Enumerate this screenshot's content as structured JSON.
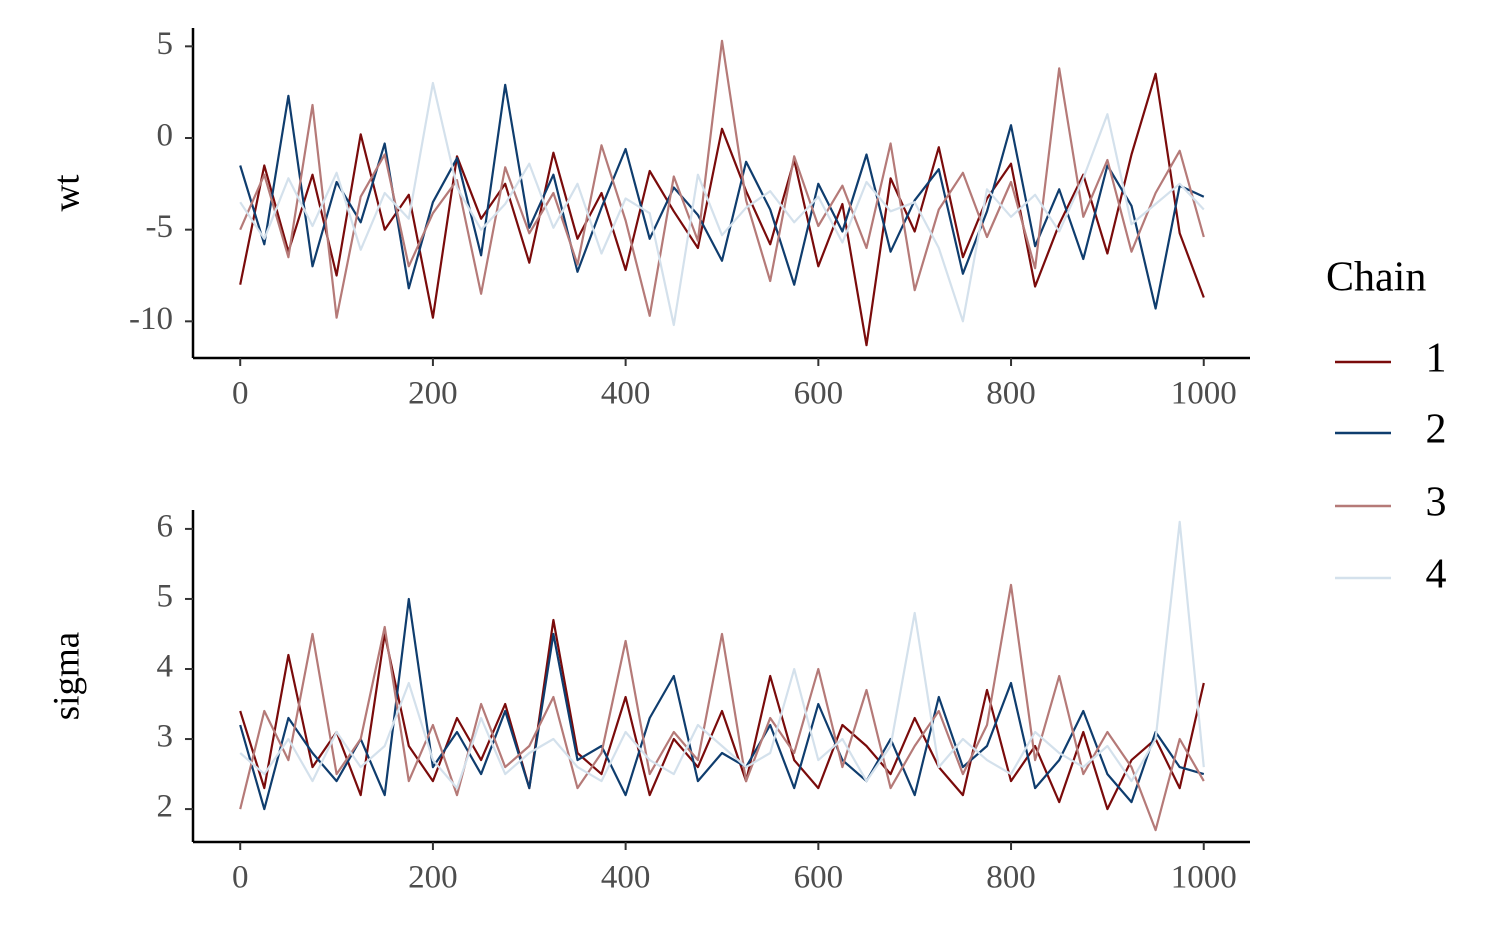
{
  "chart_data": [
    {
      "type": "line",
      "y_label": "wt",
      "legend_title": "Chain",
      "x": [
        0,
        25,
        50,
        75,
        100,
        125,
        150,
        175,
        200,
        225,
        250,
        275,
        300,
        325,
        350,
        375,
        400,
        425,
        450,
        475,
        500,
        525,
        550,
        575,
        600,
        625,
        650,
        675,
        700,
        725,
        750,
        775,
        800,
        825,
        850,
        875,
        900,
        925,
        950,
        975,
        1000
      ],
      "xlim": [
        -49,
        1048
      ],
      "ylim": [
        -12,
        6
      ],
      "xticks": [
        0,
        200,
        400,
        600,
        800,
        1000
      ],
      "yticks": [
        -10,
        -5,
        0,
        5
      ],
      "series": [
        {
          "name": "1",
          "color": "#7a0b0b",
          "values": [
            -8.0,
            -1.5,
            -6.2,
            -2.0,
            -7.5,
            0.2,
            -5.0,
            -3.1,
            -9.8,
            -1.0,
            -4.4,
            -2.5,
            -6.8,
            -0.8,
            -5.5,
            -3.0,
            -7.2,
            -1.8,
            -4.0,
            -6.0,
            0.5,
            -2.9,
            -5.8,
            -1.2,
            -7.0,
            -3.6,
            -11.3,
            -2.2,
            -5.1,
            -0.5,
            -6.5,
            -3.3,
            -1.4,
            -8.1,
            -4.7,
            -2.0,
            -6.3,
            -0.9,
            3.5,
            -5.2,
            -8.7
          ]
        },
        {
          "name": "2",
          "color": "#0f3d6e",
          "values": [
            -1.5,
            -5.8,
            2.3,
            -7.0,
            -2.4,
            -4.6,
            -0.3,
            -8.2,
            -3.5,
            -1.1,
            -6.4,
            2.9,
            -4.9,
            -2.0,
            -7.3,
            -3.8,
            -0.6,
            -5.5,
            -2.7,
            -4.2,
            -6.7,
            -1.3,
            -3.9,
            -8.0,
            -2.5,
            -5.1,
            -0.9,
            -6.2,
            -3.4,
            -1.7,
            -7.4,
            -4.0,
            0.7,
            -5.9,
            -2.8,
            -6.6,
            -1.5,
            -3.7,
            -9.3,
            -2.6,
            -3.2
          ]
        },
        {
          "name": "3",
          "color": "#b57a78",
          "values": [
            -5.0,
            -2.0,
            -6.5,
            1.8,
            -9.8,
            -3.2,
            -0.9,
            -7.0,
            -4.1,
            -2.3,
            -8.5,
            -1.6,
            -5.2,
            -3.0,
            -6.9,
            -0.4,
            -4.5,
            -9.7,
            -2.1,
            -5.6,
            5.3,
            -3.4,
            -7.8,
            -1.0,
            -4.8,
            -2.6,
            -6.0,
            -0.3,
            -8.3,
            -3.9,
            -1.9,
            -5.4,
            -2.4,
            -7.1,
            3.8,
            -4.3,
            -1.2,
            -6.2,
            -3.0,
            -0.7,
            -5.4
          ]
        },
        {
          "name": "4",
          "color": "#d4e1ec",
          "values": [
            -3.5,
            -5.5,
            -2.2,
            -4.8,
            -1.9,
            -6.1,
            -3.0,
            -4.4,
            3.0,
            -2.7,
            -5.0,
            -3.6,
            -1.4,
            -4.9,
            -2.5,
            -6.3,
            -3.3,
            -4.1,
            -10.2,
            -2.0,
            -5.3,
            -3.8,
            -2.9,
            -4.6,
            -3.2,
            -5.7,
            -2.4,
            -4.0,
            -3.5,
            -6.0,
            -10.0,
            -2.8,
            -4.3,
            -3.1,
            -5.1,
            -2.2,
            1.3,
            -4.7,
            -3.6,
            -2.5,
            -3.9
          ]
        }
      ]
    },
    {
      "type": "line",
      "y_label": "sigma",
      "x": [
        0,
        25,
        50,
        75,
        100,
        125,
        150,
        175,
        200,
        225,
        250,
        275,
        300,
        325,
        350,
        375,
        400,
        425,
        450,
        475,
        500,
        525,
        550,
        575,
        600,
        625,
        650,
        675,
        700,
        725,
        750,
        775,
        800,
        825,
        850,
        875,
        900,
        925,
        950,
        975,
        1000
      ],
      "xlim": [
        -49,
        1048
      ],
      "ylim": [
        1.53,
        6.27
      ],
      "xticks": [
        0,
        200,
        400,
        600,
        800,
        1000
      ],
      "yticks": [
        2,
        3,
        4,
        5,
        6
      ],
      "series": [
        {
          "name": "1",
          "color": "#7a0b0b",
          "values": [
            3.4,
            2.3,
            4.2,
            2.6,
            3.1,
            2.2,
            4.5,
            2.9,
            2.4,
            3.3,
            2.7,
            3.5,
            2.3,
            4.7,
            2.8,
            2.5,
            3.6,
            2.2,
            3.0,
            2.6,
            3.4,
            2.4,
            3.9,
            2.7,
            2.3,
            3.2,
            2.9,
            2.5,
            3.3,
            2.6,
            2.2,
            3.7,
            2.4,
            2.9,
            2.1,
            3.1,
            2.0,
            2.7,
            3.0,
            2.3,
            3.8
          ]
        },
        {
          "name": "2",
          "color": "#0f3d6e",
          "values": [
            3.2,
            2.0,
            3.3,
            2.8,
            2.4,
            3.0,
            2.2,
            5.0,
            2.6,
            3.1,
            2.5,
            3.4,
            2.3,
            4.5,
            2.7,
            2.9,
            2.2,
            3.3,
            3.9,
            2.4,
            2.8,
            2.6,
            3.2,
            2.3,
            3.5,
            2.7,
            2.4,
            3.0,
            2.2,
            3.6,
            2.6,
            2.9,
            3.8,
            2.3,
            2.7,
            3.4,
            2.5,
            2.1,
            3.1,
            2.6,
            2.5
          ]
        },
        {
          "name": "3",
          "color": "#b57a78",
          "values": [
            2.0,
            3.4,
            2.7,
            4.5,
            2.5,
            3.0,
            4.6,
            2.4,
            3.2,
            2.2,
            3.5,
            2.6,
            2.9,
            3.6,
            2.3,
            2.8,
            4.4,
            2.5,
            3.1,
            2.7,
            4.5,
            2.4,
            3.3,
            2.8,
            4.0,
            2.6,
            3.7,
            2.3,
            2.9,
            3.4,
            2.5,
            3.2,
            5.2,
            2.7,
            3.9,
            2.5,
            3.1,
            2.6,
            1.7,
            3.0,
            2.4
          ]
        },
        {
          "name": "4",
          "color": "#d4e1ec",
          "values": [
            2.8,
            2.5,
            3.0,
            2.4,
            3.1,
            2.6,
            2.9,
            3.8,
            2.7,
            2.3,
            3.3,
            2.5,
            2.8,
            3.0,
            2.6,
            2.4,
            3.1,
            2.7,
            2.5,
            3.2,
            2.9,
            2.6,
            2.8,
            4.0,
            2.7,
            3.0,
            2.4,
            2.9,
            4.8,
            2.6,
            3.0,
            2.7,
            2.5,
            3.1,
            2.8,
            2.6,
            2.9,
            2.4,
            3.0,
            6.1,
            2.6
          ]
        }
      ]
    }
  ]
}
